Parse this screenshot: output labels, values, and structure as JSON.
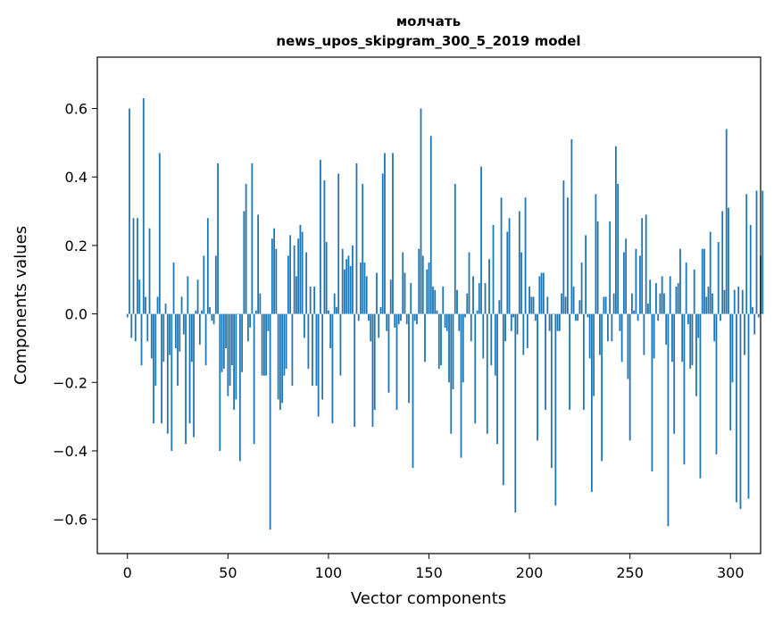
{
  "chart_data": {
    "type": "bar",
    "title_line1": "молчать",
    "title_line2": "news_upos_skipgram_300_5_2019 model",
    "xlabel": "Vector components",
    "ylabel": "Components values",
    "xlim": [
      -15,
      315
    ],
    "ylim": [
      -0.7,
      0.75
    ],
    "x_ticks": [
      0,
      50,
      100,
      150,
      200,
      250,
      300
    ],
    "y_ticks": [
      -0.6,
      -0.4,
      -0.2,
      0.0,
      0.2,
      0.4,
      0.6
    ],
    "y_tick_labels": [
      "−0.6",
      "−0.4",
      "−0.2",
      "0.0",
      "0.2",
      "0.4",
      "0.6"
    ],
    "bar_color": "#1f77b4",
    "grid": false,
    "values": [
      -0.01,
      0.6,
      -0.07,
      0.28,
      -0.08,
      0.28,
      0.1,
      -0.15,
      0.63,
      0.05,
      -0.08,
      0.25,
      -0.13,
      -0.32,
      -0.21,
      0.05,
      0.47,
      -0.32,
      -0.14,
      0.03,
      -0.35,
      -0.12,
      -0.4,
      0.15,
      -0.1,
      -0.21,
      -0.11,
      0.05,
      -0.06,
      -0.38,
      0.11,
      -0.32,
      -0.14,
      -0.36,
      0.01,
      0.1,
      -0.09,
      0.01,
      0.17,
      -0.15,
      0.28,
      0.02,
      -0.02,
      -0.03,
      0.17,
      0.44,
      -0.4,
      -0.17,
      -0.16,
      -0.1,
      -0.24,
      -0.21,
      -0.15,
      -0.28,
      -0.25,
      0.0,
      -0.43,
      -0.17,
      0.3,
      0.38,
      -0.08,
      -0.04,
      0.44,
      -0.38,
      0.01,
      0.29,
      0.06,
      -0.18,
      -0.18,
      -0.18,
      -0.05,
      -0.63,
      0.22,
      0.25,
      0.19,
      -0.25,
      -0.28,
      -0.26,
      -0.18,
      -0.16,
      0.17,
      0.23,
      -0.21,
      0.2,
      0.11,
      0.22,
      0.26,
      0.24,
      -0.07,
      0.18,
      -0.16,
      0.08,
      -0.21,
      0.08,
      -0.21,
      -0.3,
      0.45,
      -0.25,
      0.39,
      0.21,
      0.01,
      -0.1,
      -0.32,
      0.06,
      0.02,
      0.41,
      -0.18,
      0.19,
      0.13,
      0.16,
      0.17,
      0.14,
      0.2,
      -0.33,
      0.44,
      -0.02,
      0.15,
      0.38,
      0.15,
      0.11,
      -0.02,
      -0.08,
      -0.33,
      -0.28,
      0.12,
      -0.07,
      0.02,
      0.41,
      0.47,
      -0.05,
      -0.23,
      0.1,
      0.47,
      -0.04,
      -0.28,
      -0.03,
      -0.02,
      0.18,
      0.12,
      -0.03,
      -0.26,
      0.09,
      -0.45,
      -0.02,
      -0.03,
      0.19,
      0.6,
      0.17,
      -0.14,
      0.13,
      0.15,
      0.52,
      0.08,
      0.07,
      0.01,
      -0.16,
      -0.15,
      0.08,
      -0.04,
      -0.05,
      -0.2,
      -0.35,
      -0.22,
      0.38,
      0.07,
      -0.05,
      -0.42,
      -0.2,
      -0.01,
      0.06,
      0.18,
      -0.08,
      0.11,
      -0.32,
      0.01,
      0.09,
      0.43,
      -0.13,
      0.09,
      -0.35,
      0.16,
      -0.15,
      0.26,
      -0.18,
      -0.38,
      0.04,
      0.34,
      -0.5,
      -0.08,
      0.24,
      0.28,
      -0.05,
      -0.01,
      -0.58,
      -0.06,
      0.3,
      0.18,
      -0.12,
      0.34,
      -0.1,
      0.08,
      0.05,
      0.05,
      -0.02,
      -0.37,
      0.11,
      0.12,
      0.12,
      -0.28,
      0.05,
      -0.05,
      -0.45,
      0.0,
      -0.56,
      -0.05,
      -0.05,
      0.06,
      0.39,
      0.05,
      0.34,
      -0.28,
      0.51,
      0.08,
      -0.02,
      -0.02,
      0.04,
      0.15,
      -0.28,
      0.23,
      -0.01,
      -0.13,
      -0.52,
      -0.24,
      0.35,
      0.27,
      -0.12,
      -0.43,
      0.05,
      0.05,
      -0.08,
      0.27,
      -0.08,
      0.06,
      0.49,
      0.38,
      -0.05,
      -0.14,
      0.18,
      0.22,
      -0.19,
      -0.37,
      0.06,
      0.01,
      0.19,
      -0.02,
      0.17,
      0.28,
      -0.12,
      0.29,
      0.03,
      0.1,
      -0.46,
      -0.13,
      0.09,
      -0.02,
      0.06,
      0.11,
      0.06,
      -0.09,
      -0.62,
      0.11,
      -0.14,
      -0.35,
      0.08,
      0.09,
      0.19,
      -0.14,
      -0.44,
      0.15,
      -0.03,
      -0.16,
      -0.15,
      0.13,
      -0.24,
      -0.07,
      -0.48,
      0.19,
      0.19,
      0.05,
      0.08,
      0.24,
      0.06,
      -0.08,
      -0.41,
      0.21,
      -0.02,
      0.3,
      0.07,
      0.54,
      0.31,
      -0.34,
      -0.2,
      0.07,
      -0.55,
      0.08,
      -0.57,
      0.07,
      -0.12,
      0.35,
      -0.54,
      0.26,
      0.02,
      -0.06,
      0.36,
      -0.01,
      0.17,
      0.36
    ]
  }
}
